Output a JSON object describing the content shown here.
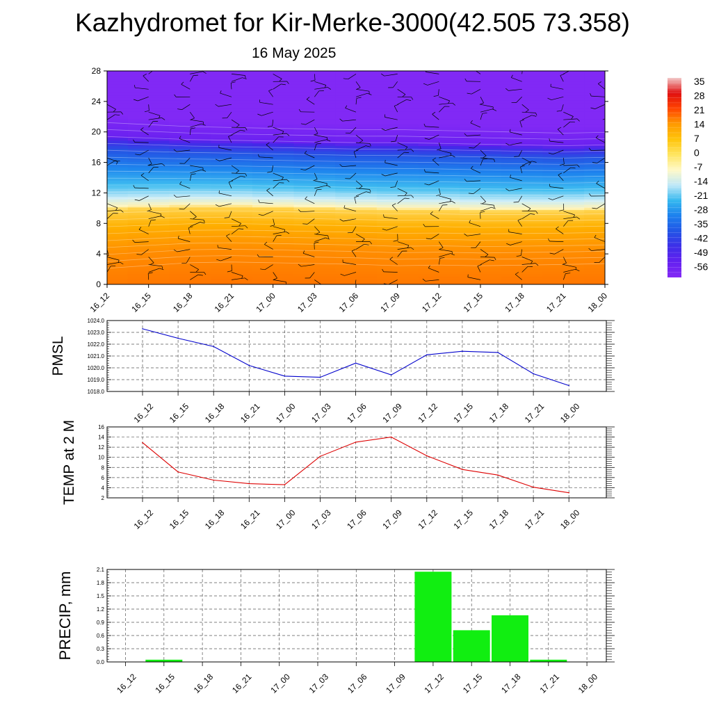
{
  "title": "Kazhydromet for Kir-Merke-3000(42.505 73.358)",
  "subtitle": "16 May 2025",
  "time_labels": [
    "16_12",
    "16_15",
    "16_18",
    "16_21",
    "17_00",
    "17_03",
    "17_06",
    "17_09",
    "17_12",
    "17_15",
    "17_18",
    "17_21",
    "18_00"
  ],
  "colorbar": {
    "labels": [
      "35",
      "28",
      "21",
      "14",
      "7",
      "0",
      "-7",
      "-14",
      "-21",
      "-28",
      "-35",
      "-42",
      "-49",
      "-56"
    ],
    "colors": [
      "#f2c8c8",
      "#e01010",
      "#ff4400",
      "#ff9a00",
      "#ffc40a",
      "#ffe560",
      "#fff9c8",
      "#bfe8f8",
      "#35b8ef",
      "#1c80ee",
      "#2255e6",
      "#3e2ee8",
      "#6420f0",
      "#8429f5"
    ]
  },
  "chart_data": [
    {
      "type": "heatmap",
      "name": "temperature-wind cross section",
      "y_ticks": [
        "0",
        "4",
        "8",
        "12",
        "16",
        "20",
        "24",
        "28"
      ],
      "ylim": [
        0,
        28
      ],
      "x": [
        "16_12",
        "16_15",
        "16_18",
        "16_21",
        "17_00",
        "17_03",
        "17_06",
        "17_09",
        "17_12",
        "17_15",
        "17_18",
        "17_21",
        "18_00"
      ],
      "color_scale": [
        -56,
        35
      ],
      "freezing_level": [
        10.3,
        10.4,
        10.5,
        10.5,
        10.4,
        10.3,
        10.2,
        10.1,
        10.1,
        10.0,
        10.0,
        10.0,
        10.1
      ],
      "tropopause_level": [
        19.4,
        19.2,
        19.0,
        18.9,
        18.8,
        18.7,
        18.6,
        18.6,
        18.5,
        18.4,
        18.3,
        18.2,
        18.3
      ],
      "grid": false
    },
    {
      "type": "line",
      "ylabel": "PMSL",
      "ylim": [
        1018.0,
        1024.0
      ],
      "y_ticks": [
        "1018.0",
        "1019.0",
        "1020.0",
        "1021.0",
        "1022.0",
        "1023.0",
        "1024.0"
      ],
      "categories": [
        "16_12",
        "16_15",
        "16_18",
        "16_21",
        "17_00",
        "17_03",
        "17_06",
        "17_09",
        "17_12",
        "17_15",
        "17_18",
        "17_21",
        "18_00"
      ],
      "values": [
        1023.3,
        1022.5,
        1021.8,
        1020.2,
        1019.3,
        1019.2,
        1020.4,
        1019.4,
        1021.1,
        1021.4,
        1021.3,
        1019.5,
        1018.5
      ],
      "color": "#0000cc",
      "grid": true
    },
    {
      "type": "line",
      "ylabel": "TEMP at 2 M",
      "ylim": [
        2,
        16
      ],
      "y_ticks": [
        "2",
        "4",
        "6",
        "8",
        "10",
        "12",
        "14",
        "16"
      ],
      "categories": [
        "16_12",
        "16_15",
        "16_18",
        "16_21",
        "17_00",
        "17_03",
        "17_06",
        "17_09",
        "17_12",
        "17_15",
        "17_18",
        "17_21",
        "18_00"
      ],
      "values": [
        12.9,
        7.1,
        5.5,
        4.8,
        4.6,
        10.2,
        13.0,
        14.0,
        10.3,
        7.6,
        6.5,
        4.1,
        3.0
      ],
      "color": "#dd0000",
      "grid": true
    },
    {
      "type": "bar",
      "ylabel": "PRECIP, mm",
      "ylim": [
        0,
        2.1
      ],
      "y_ticks": [
        "0.0",
        "0.3",
        "0.6",
        "0.9",
        "1.2",
        "1.5",
        "1.8",
        "2.1"
      ],
      "categories": [
        "16_12",
        "16_15",
        "16_18",
        "16_21",
        "17_00",
        "17_03",
        "17_06",
        "17_09",
        "17_12",
        "17_15",
        "17_18",
        "17_21",
        "18_00"
      ],
      "values": [
        0,
        0.05,
        0,
        0,
        0,
        0,
        0,
        0,
        2.05,
        0.72,
        1.06,
        0.05,
        0
      ],
      "color": "#11ee11",
      "grid": true
    }
  ]
}
